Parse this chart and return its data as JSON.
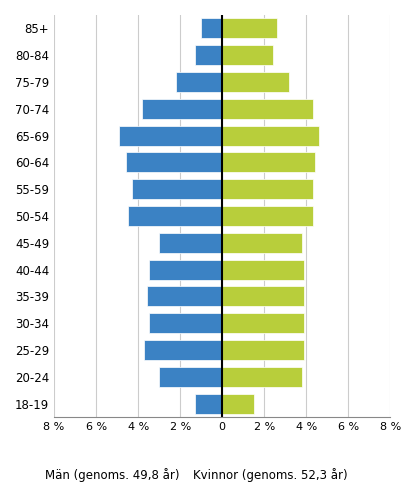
{
  "age_groups": [
    "85+",
    "80-84",
    "75-79",
    "70-74",
    "65-69",
    "60-64",
    "55-59",
    "50-54",
    "45-49",
    "40-44",
    "35-39",
    "30-34",
    "25-29",
    "20-24",
    "18-19"
  ],
  "men": [
    1.0,
    1.3,
    2.2,
    3.8,
    4.9,
    4.6,
    4.3,
    4.5,
    3.0,
    3.5,
    3.6,
    3.5,
    3.7,
    3.0,
    1.3
  ],
  "women": [
    2.6,
    2.4,
    3.2,
    4.3,
    4.6,
    4.4,
    4.3,
    4.3,
    3.8,
    3.9,
    3.9,
    3.9,
    3.9,
    3.8,
    1.5
  ],
  "men_color": "#3b82c4",
  "women_color": "#b8ce3b",
  "xlabel_men": "Män (genoms. 49,8 år)",
  "xlabel_women": "Kvinnor (genoms. 52,3 år)",
  "xlim": 8,
  "background_color": "#ffffff",
  "grid_color": "#cccccc",
  "bar_height": 0.75
}
